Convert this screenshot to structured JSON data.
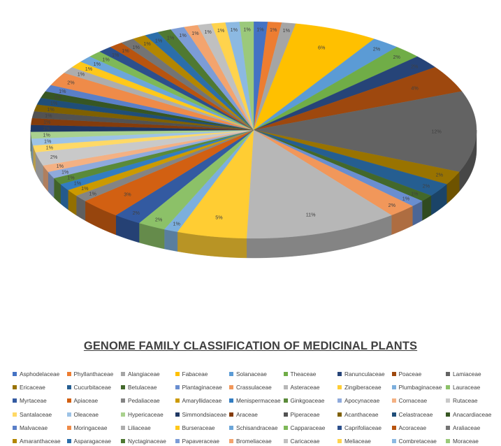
{
  "chart_data": {
    "type": "pie",
    "title": "GENOME FAMILY CLASSIFICATION OF MEDICINAL PLANTS",
    "legend_position": "bottom",
    "three_d": true,
    "slices": [
      {
        "name": "Asphodelaceae",
        "value": 1,
        "label": "1%",
        "color": "#4472C4"
      },
      {
        "name": "Phyllanthaceae",
        "value": 1,
        "label": "1%",
        "color": "#ED7D31"
      },
      {
        "name": "Alangiaceae",
        "value": 1,
        "label": "1%",
        "color": "#A5A5A5"
      },
      {
        "name": "Fabaceae",
        "value": 6,
        "label": "6%",
        "color": "#FFC000"
      },
      {
        "name": "Solanaceae",
        "value": 2,
        "label": "2%",
        "color": "#5B9BD5"
      },
      {
        "name": "Theaceae",
        "value": 2,
        "label": "2%",
        "color": "#70AD47"
      },
      {
        "name": "Ranunculaceae",
        "value": 2,
        "label": "2%",
        "color": "#264478"
      },
      {
        "name": "Poaceae",
        "value": 4,
        "label": "4%",
        "color": "#9E480E"
      },
      {
        "name": "Lamiaceae",
        "value": 12,
        "label": "12%",
        "color": "#636363"
      },
      {
        "name": "Ericaceae",
        "value": 2,
        "label": "2%",
        "color": "#997300"
      },
      {
        "name": "Cucurbitaceae",
        "value": 2,
        "label": "2%",
        "color": "#255E91"
      },
      {
        "name": "Betulaceae",
        "value": 1,
        "label": "1%",
        "color": "#43682B"
      },
      {
        "name": "Plantaginaceae",
        "value": 1,
        "label": "1%",
        "color": "#698ED0"
      },
      {
        "name": "Crassulaceae",
        "value": 2,
        "label": "2%",
        "color": "#F1975A"
      },
      {
        "name": "Asteraceae",
        "value": 11,
        "label": "11%",
        "color": "#B7B7B7"
      },
      {
        "name": "Zingiberaceae",
        "value": 5,
        "label": "5%",
        "color": "#FFCD33"
      },
      {
        "name": "Plumbaginaceae",
        "value": 1,
        "label": "1%",
        "color": "#7CAFDD"
      },
      {
        "name": "Lauraceae",
        "value": 2,
        "label": "2%",
        "color": "#8CC168"
      },
      {
        "name": "Myrtaceae",
        "value": 2,
        "label": "2%",
        "color": "#335AA1"
      },
      {
        "name": "Apiaceae",
        "value": 3,
        "label": "3%",
        "color": "#D26012"
      },
      {
        "name": "Pedaliaceae",
        "value": 1,
        "label": "1%",
        "color": "#848484"
      },
      {
        "name": "Amaryllidaceae",
        "value": 1,
        "label": "1%",
        "color": "#CC9A00"
      },
      {
        "name": "Menispermaceae",
        "value": 1,
        "label": "1%",
        "color": "#327DC2"
      },
      {
        "name": "Ginkgoaceae",
        "value": 1,
        "label": "1%",
        "color": "#5A8A39"
      },
      {
        "name": "Apocynaceae",
        "value": 1,
        "label": "1%",
        "color": "#8FAADC"
      },
      {
        "name": "Cornaceae",
        "value": 1,
        "label": "1%",
        "color": "#F4B183"
      },
      {
        "name": "Rutaceae",
        "value": 2,
        "label": "2%",
        "color": "#C9C9C9"
      },
      {
        "name": "Santalaceae",
        "value": 1,
        "label": "1%",
        "color": "#FFD966"
      },
      {
        "name": "Oleaceae",
        "value": 1,
        "label": "1%",
        "color": "#9DC3E6"
      },
      {
        "name": "Hypericaceae",
        "value": 1,
        "label": "1%",
        "color": "#A9D18E"
      },
      {
        "name": "Simmondsiaceae",
        "value": 1,
        "label": "1%",
        "color": "#1F3864"
      },
      {
        "name": "Araceae",
        "value": 1,
        "label": "1%",
        "color": "#843C0C"
      },
      {
        "name": "Piperaceae",
        "value": 1,
        "label": "1%",
        "color": "#525252"
      },
      {
        "name": "Acanthaceae",
        "value": 1,
        "label": "1%",
        "color": "#7F6000"
      },
      {
        "name": "Celastraceae",
        "value": 1,
        "label": "1%",
        "color": "#1F4E79"
      },
      {
        "name": "Anacardiaceae",
        "value": 1,
        "label": "1%",
        "color": "#375623"
      },
      {
        "name": "Malvaceae",
        "value": 1,
        "label": "1%",
        "color": "#5A7FC8"
      },
      {
        "name": "Moringaceae",
        "value": 2,
        "label": "2%",
        "color": "#EF8B49"
      },
      {
        "name": "Liliaceae",
        "value": 1,
        "label": "1%",
        "color": "#ADADAD"
      },
      {
        "name": "Burseraceae",
        "value": 1,
        "label": "1%",
        "color": "#FFC81A"
      },
      {
        "name": "Schisandraceae",
        "value": 1,
        "label": "1%",
        "color": "#6CA6D9"
      },
      {
        "name": "Capparaceae",
        "value": 1,
        "label": "1%",
        "color": "#7EB858"
      },
      {
        "name": "Caprifoliaceae",
        "value": 1,
        "label": "1%",
        "color": "#2C4F8C"
      },
      {
        "name": "Acoraceae",
        "value": 1,
        "label": "1%",
        "color": "#B8540F"
      },
      {
        "name": "Araliaceae",
        "value": 1,
        "label": "1%",
        "color": "#747474"
      },
      {
        "name": "Amaranthaceae",
        "value": 1,
        "label": "1%",
        "color": "#B38600"
      },
      {
        "name": "Asparagaceae",
        "value": 1,
        "label": "1%",
        "color": "#2B6EAA"
      },
      {
        "name": "Nyctaginaceae",
        "value": 1,
        "label": "1%",
        "color": "#4F7932"
      },
      {
        "name": "Papaveraceae",
        "value": 1,
        "label": "1%",
        "color": "#7C9CD6"
      },
      {
        "name": "Bromeliaceae",
        "value": 1,
        "label": "1%",
        "color": "#F3A46E"
      },
      {
        "name": "Caricaceae",
        "value": 1,
        "label": "1%",
        "color": "#C0C0C0"
      },
      {
        "name": "Meliaceae",
        "value": 1,
        "label": "1%",
        "color": "#FFD34D"
      },
      {
        "name": "Combretaceae",
        "value": 1,
        "label": "1%",
        "color": "#8CB9E2"
      },
      {
        "name": "Moraceae",
        "value": 1,
        "label": "1%",
        "color": "#9BC97B"
      }
    ]
  }
}
